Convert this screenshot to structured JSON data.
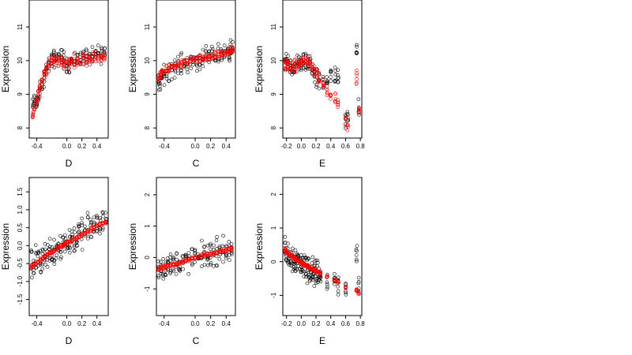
{
  "colors": {
    "observed": "#000000",
    "fitted": "#ff0000"
  },
  "chart_data": [
    {
      "type": "scatter",
      "panel": "row1-col1",
      "xlabel": "D",
      "ylabel": "Expression",
      "xlim": [
        -0.5,
        0.55
      ],
      "ylim": [
        7.7,
        11.8
      ],
      "xticks": [
        -0.4,
        0.0,
        0.2,
        0.4
      ],
      "xtick_labels": [
        "-0.4",
        "0.0",
        "0.2",
        "0.4"
      ],
      "yticks": [
        8,
        9,
        10,
        11
      ],
      "ytick_labels": [
        "8",
        "9",
        "10",
        "11"
      ],
      "x_positions": [
        -0.45,
        -0.43,
        -0.4,
        -0.38,
        -0.36,
        -0.33,
        -0.3,
        -0.27,
        -0.24,
        -0.2,
        -0.17,
        -0.14,
        -0.11,
        -0.07,
        -0.04,
        0.0,
        0.03,
        0.06,
        0.1,
        0.14,
        0.18,
        0.22,
        0.26,
        0.3,
        0.34,
        0.38,
        0.42,
        0.46,
        0.5
      ],
      "series": [
        {
          "role": "observed",
          "center": [
            8.6,
            8.8,
            8.8,
            8.9,
            9.1,
            9.3,
            9.5,
            9.7,
            9.9,
            10.0,
            10.05,
            10.1,
            10.1,
            10.1,
            10.0,
            9.9,
            9.9,
            10.0,
            10.0,
            10.05,
            10.1,
            10.1,
            10.1,
            10.1,
            10.1,
            10.15,
            10.2,
            10.2,
            10.2
          ],
          "spread": 0.75
        },
        {
          "role": "fitted",
          "center": [
            8.4,
            8.6,
            8.8,
            9.0,
            9.2,
            9.4,
            9.6,
            9.75,
            9.85,
            9.95,
            10.0,
            10.0,
            10.0,
            10.0,
            9.95,
            9.9,
            9.9,
            9.95,
            10.0,
            10.0,
            10.0,
            10.05,
            10.05,
            10.1,
            10.1,
            10.1,
            10.1,
            10.1,
            10.1
          ],
          "spread": 0.5
        }
      ]
    },
    {
      "type": "scatter",
      "panel": "row1-col2",
      "xlabel": "C",
      "ylabel": "Expression",
      "xlim": [
        -0.5,
        0.52
      ],
      "ylim": [
        7.7,
        11.8
      ],
      "xticks": [
        -0.4,
        0.0,
        0.2,
        0.4
      ],
      "xtick_labels": [
        "-0.4",
        "0.0",
        "0.2",
        "0.4"
      ],
      "yticks": [
        8,
        9,
        10,
        11
      ],
      "ytick_labels": [
        "8",
        "9",
        "10",
        "11"
      ],
      "x_positions": [
        -0.47,
        -0.45,
        -0.43,
        -0.4,
        -0.37,
        -0.34,
        -0.3,
        -0.26,
        -0.22,
        -0.18,
        -0.14,
        -0.1,
        -0.06,
        -0.02,
        0.02,
        0.06,
        0.1,
        0.14,
        0.18,
        0.22,
        0.26,
        0.3,
        0.34,
        0.38,
        0.42,
        0.44,
        0.46,
        0.48
      ],
      "series": [
        {
          "role": "observed",
          "center": [
            9.3,
            9.4,
            9.5,
            9.6,
            9.65,
            9.7,
            9.75,
            9.8,
            9.85,
            9.9,
            9.9,
            9.95,
            9.95,
            10.0,
            10.0,
            10.0,
            10.05,
            10.1,
            10.1,
            10.1,
            10.15,
            10.2,
            10.2,
            10.25,
            10.3,
            10.3,
            10.3,
            10.3
          ],
          "spread": 0.85
        },
        {
          "role": "fitted",
          "center": [
            9.5,
            9.55,
            9.6,
            9.65,
            9.7,
            9.75,
            9.8,
            9.85,
            9.9,
            9.9,
            9.95,
            9.95,
            10.0,
            10.0,
            10.0,
            10.05,
            10.05,
            10.1,
            10.1,
            10.1,
            10.15,
            10.15,
            10.2,
            10.2,
            10.25,
            10.25,
            10.3,
            10.3
          ],
          "spread": 0.35
        }
      ]
    },
    {
      "type": "scatter",
      "panel": "row1-col3",
      "xlabel": "E",
      "ylabel": "Expression",
      "xlim": [
        -0.25,
        0.82
      ],
      "ylim": [
        7.7,
        11.8
      ],
      "xticks": [
        -0.2,
        0.0,
        0.2,
        0.4,
        0.6,
        0.8
      ],
      "xtick_labels": [
        "-0.2",
        "0.0",
        "0.2",
        "0.4",
        "0.6",
        "0.8"
      ],
      "yticks": [
        8,
        9,
        10,
        11
      ],
      "ytick_labels": [
        "8",
        "9",
        "10",
        "11"
      ],
      "x_positions": [
        -0.22,
        -0.2,
        -0.18,
        -0.15,
        -0.12,
        -0.09,
        -0.06,
        -0.03,
        0.0,
        0.03,
        0.06,
        0.09,
        0.12,
        0.15,
        0.18,
        0.21,
        0.24,
        0.3,
        0.35,
        0.4,
        0.46,
        0.5,
        0.6,
        0.63,
        0.75,
        0.78
      ],
      "series": [
        {
          "role": "observed",
          "center": [
            9.8,
            9.9,
            9.9,
            9.85,
            9.8,
            9.8,
            9.85,
            9.9,
            9.9,
            9.95,
            10.0,
            9.95,
            9.9,
            9.8,
            9.6,
            9.5,
            9.4,
            9.3,
            9.5,
            9.6,
            9.5,
            9.4,
            8.3,
            8.2,
            10.3,
            8.6
          ],
          "spread": 0.9
        },
        {
          "role": "fitted",
          "center": [
            9.9,
            9.9,
            9.85,
            9.85,
            9.8,
            9.8,
            9.85,
            9.9,
            9.95,
            10.0,
            10.0,
            9.95,
            9.9,
            9.8,
            9.7,
            9.6,
            9.5,
            9.3,
            9.1,
            9.0,
            8.9,
            8.8,
            8.2,
            8.1,
            9.5,
            8.5
          ],
          "spread": 0.55
        }
      ]
    },
    {
      "type": "scatter",
      "panel": "row2-col1",
      "xlabel": "D",
      "ylabel": "Expression",
      "xlim": [
        -0.5,
        0.55
      ],
      "ylim": [
        -1.95,
        1.9
      ],
      "xticks": [
        -0.4,
        0.0,
        0.2,
        0.4
      ],
      "xtick_labels": [
        "-0.4",
        "0.0",
        "0.2",
        "0.4"
      ],
      "yticks": [
        -1.5,
        -1.0,
        -0.5,
        0.0,
        0.5,
        1.0,
        1.5
      ],
      "ytick_labels": [
        "-1.5",
        "-1.0",
        "-0.5",
        "0.0",
        "0.5",
        "1.0",
        "1.5"
      ],
      "x_positions": [
        -0.47,
        -0.44,
        -0.41,
        -0.38,
        -0.35,
        -0.32,
        -0.29,
        -0.26,
        -0.23,
        -0.2,
        -0.17,
        -0.14,
        -0.11,
        -0.08,
        -0.05,
        -0.02,
        0.01,
        0.04,
        0.07,
        0.1,
        0.13,
        0.16,
        0.2,
        0.24,
        0.28,
        0.32,
        0.36,
        0.4,
        0.44,
        0.48,
        0.52
      ],
      "series": [
        {
          "role": "observed",
          "center": [
            -0.55,
            -0.5,
            -0.45,
            -0.4,
            -0.35,
            -0.3,
            -0.3,
            -0.25,
            -0.2,
            -0.15,
            -0.1,
            -0.05,
            0.0,
            0.0,
            0.05,
            0.1,
            0.1,
            0.15,
            0.2,
            0.2,
            0.25,
            0.3,
            0.35,
            0.4,
            0.45,
            0.5,
            0.55,
            0.6,
            0.6,
            0.65,
            0.7
          ],
          "spread": 1.3
        },
        {
          "role": "fitted",
          "center": [
            -0.6,
            -0.55,
            -0.5,
            -0.45,
            -0.4,
            -0.35,
            -0.3,
            -0.25,
            -0.2,
            -0.18,
            -0.15,
            -0.1,
            -0.05,
            0.0,
            0.0,
            0.05,
            0.1,
            0.1,
            0.15,
            0.2,
            0.2,
            0.25,
            0.3,
            0.35,
            0.4,
            0.45,
            0.5,
            0.55,
            0.6,
            0.62,
            0.65
          ],
          "spread": 0.12
        }
      ]
    },
    {
      "type": "scatter",
      "panel": "row2-col2",
      "xlabel": "C",
      "ylabel": "Expression",
      "xlim": [
        -0.5,
        0.52
      ],
      "ylim": [
        -1.85,
        2.55
      ],
      "xticks": [
        -0.4,
        0.0,
        0.2,
        0.4
      ],
      "xtick_labels": [
        "-0.4",
        "0.0",
        "0.2",
        "0.4"
      ],
      "yticks": [
        -1,
        0,
        1,
        2
      ],
      "ytick_labels": [
        "-1",
        "0",
        "1",
        "2"
      ],
      "x_positions": [
        -0.47,
        -0.44,
        -0.41,
        -0.38,
        -0.35,
        -0.32,
        -0.28,
        -0.24,
        -0.2,
        -0.16,
        -0.12,
        -0.08,
        -0.04,
        0.0,
        0.04,
        0.08,
        0.12,
        0.16,
        0.2,
        0.24,
        0.28,
        0.32,
        0.36,
        0.4,
        0.44,
        0.47
      ],
      "series": [
        {
          "role": "observed",
          "center": [
            -0.35,
            -0.32,
            -0.3,
            -0.28,
            -0.25,
            -0.22,
            -0.2,
            -0.18,
            -0.15,
            -0.12,
            -0.1,
            -0.08,
            -0.05,
            0.0,
            0.0,
            0.05,
            0.08,
            0.1,
            0.12,
            0.15,
            0.18,
            0.2,
            0.22,
            0.25,
            0.28,
            0.3
          ],
          "spread": 1.2
        },
        {
          "role": "fitted",
          "center": [
            -0.38,
            -0.35,
            -0.32,
            -0.3,
            -0.28,
            -0.25,
            -0.22,
            -0.2,
            -0.17,
            -0.14,
            -0.1,
            -0.07,
            -0.04,
            0.0,
            0.02,
            0.05,
            0.08,
            0.1,
            0.12,
            0.15,
            0.17,
            0.2,
            0.22,
            0.24,
            0.26,
            0.28
          ],
          "spread": 0.15
        }
      ]
    },
    {
      "type": "scatter",
      "panel": "row2-col3",
      "xlabel": "E",
      "ylabel": "Expression",
      "xlim": [
        -0.25,
        0.82
      ],
      "ylim": [
        -1.6,
        2.5
      ],
      "xticks": [
        -0.2,
        0.0,
        0.2,
        0.4,
        0.6,
        0.8
      ],
      "xtick_labels": [
        "-0.2",
        "0.0",
        "0.2",
        "0.4",
        "0.6",
        "0.8"
      ],
      "yticks": [
        -1,
        0,
        1,
        2
      ],
      "ytick_labels": [
        "-1",
        "0",
        "1",
        "2"
      ],
      "x_positions": [
        -0.22,
        -0.2,
        -0.18,
        -0.16,
        -0.14,
        -0.12,
        -0.1,
        -0.08,
        -0.06,
        -0.04,
        -0.02,
        0.0,
        0.02,
        0.04,
        0.06,
        0.08,
        0.1,
        0.12,
        0.14,
        0.16,
        0.18,
        0.2,
        0.22,
        0.24,
        0.26,
        0.35,
        0.45,
        0.5,
        0.6,
        0.75,
        0.78
      ],
      "series": [
        {
          "role": "observed",
          "center": [
            0.35,
            0.3,
            0.25,
            0.2,
            0.15,
            0.12,
            0.08,
            0.05,
            0.02,
            0.0,
            -0.05,
            -0.08,
            -0.1,
            -0.12,
            -0.15,
            -0.18,
            -0.2,
            -0.22,
            -0.25,
            -0.28,
            -0.3,
            -0.32,
            -0.35,
            -0.4,
            -0.45,
            -0.6,
            -0.55,
            -0.7,
            -0.8,
            0.1,
            -0.9
          ],
          "spread": 1.2
        },
        {
          "role": "fitted",
          "center": [
            0.35,
            0.3,
            0.25,
            0.22,
            0.18,
            0.15,
            0.12,
            0.08,
            0.05,
            0.02,
            0.0,
            -0.03,
            -0.06,
            -0.08,
            -0.1,
            -0.13,
            -0.15,
            -0.18,
            -0.2,
            -0.23,
            -0.25,
            -0.28,
            -0.3,
            -0.33,
            -0.36,
            -0.45,
            -0.55,
            -0.6,
            -0.75,
            -0.85,
            -0.95
          ],
          "spread": 0.12
        }
      ]
    }
  ]
}
